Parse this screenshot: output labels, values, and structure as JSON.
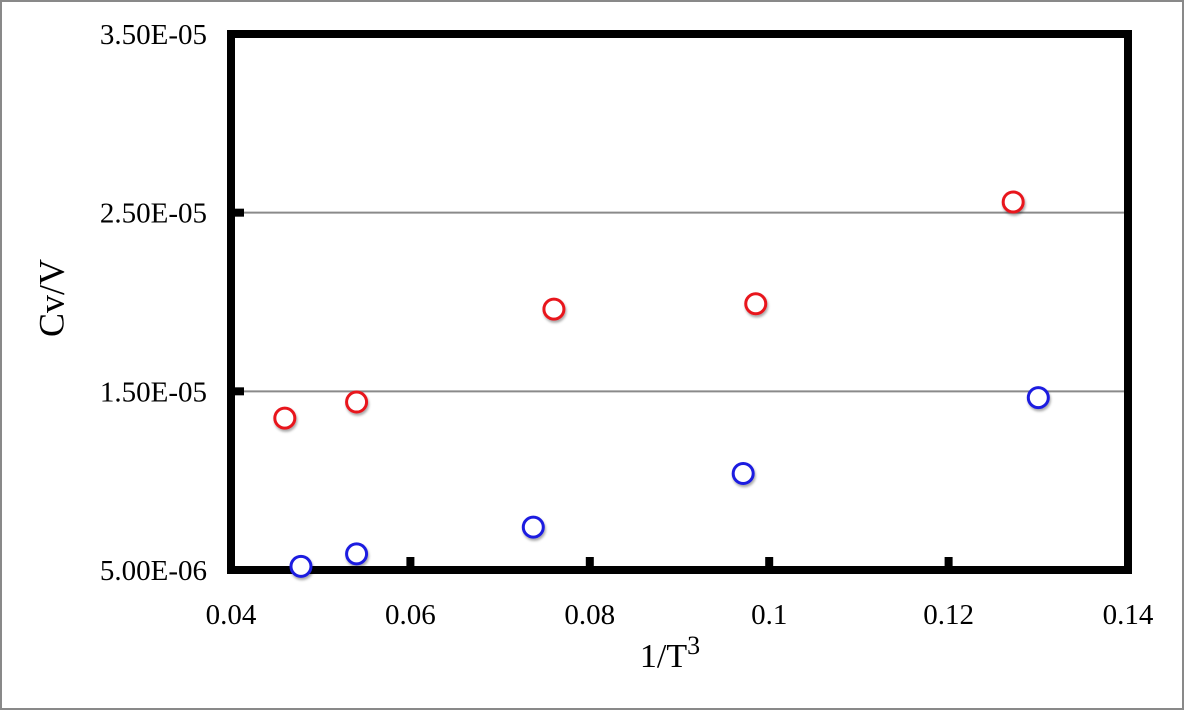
{
  "window": {
    "background": "#ffffff",
    "border_color": "#898989"
  },
  "chart_data": {
    "type": "scatter",
    "title": "",
    "xlabel": "1/T^3",
    "xlabel_base": "1/T",
    "xlabel_exponent": "3",
    "ylabel": "Cv/V",
    "xlim": [
      0.04,
      0.14
    ],
    "ylim": [
      5e-06,
      3.5e-05
    ],
    "x_tick_values": [
      0.04,
      0.06,
      0.08,
      0.1,
      0.12,
      0.14
    ],
    "x_tick_labels": [
      "0.04",
      "0.06",
      "0.08",
      "0.1",
      "0.12",
      "0.14"
    ],
    "y_tick_values": [
      5e-06,
      1.5e-05,
      2.5e-05,
      3.5e-05
    ],
    "y_tick_labels": [
      "5.00E-06",
      "1.50E-05",
      "2.50E-05",
      "3.50E-05"
    ],
    "y_gridline_values": [
      1.5e-05,
      2.5e-05
    ],
    "grid": "horizontal-only",
    "legend": "none",
    "marker_style": "open-circle",
    "colors": {
      "series_red": "#e8131f",
      "series_blue": "#1c1ce0",
      "gridline": "#8a8a8a",
      "axis": "#000000"
    },
    "series": [
      {
        "name": "red-series",
        "color_key": "series_red",
        "points": [
          {
            "x": 0.046,
            "y": 1.35e-05
          },
          {
            "x": 0.054,
            "y": 1.44e-05
          },
          {
            "x": 0.076,
            "y": 1.96e-05
          },
          {
            "x": 0.0985,
            "y": 1.99e-05
          },
          {
            "x": 0.1272,
            "y": 2.56e-05
          }
        ]
      },
      {
        "name": "blue-series",
        "color_key": "series_blue",
        "points": [
          {
            "x": 0.0478,
            "y": 5.2e-06
          },
          {
            "x": 0.054,
            "y": 5.9e-06
          },
          {
            "x": 0.0737,
            "y": 7.4e-06
          },
          {
            "x": 0.0971,
            "y": 1.04e-05
          },
          {
            "x": 0.13,
            "y": 1.465e-05
          }
        ]
      }
    ]
  }
}
